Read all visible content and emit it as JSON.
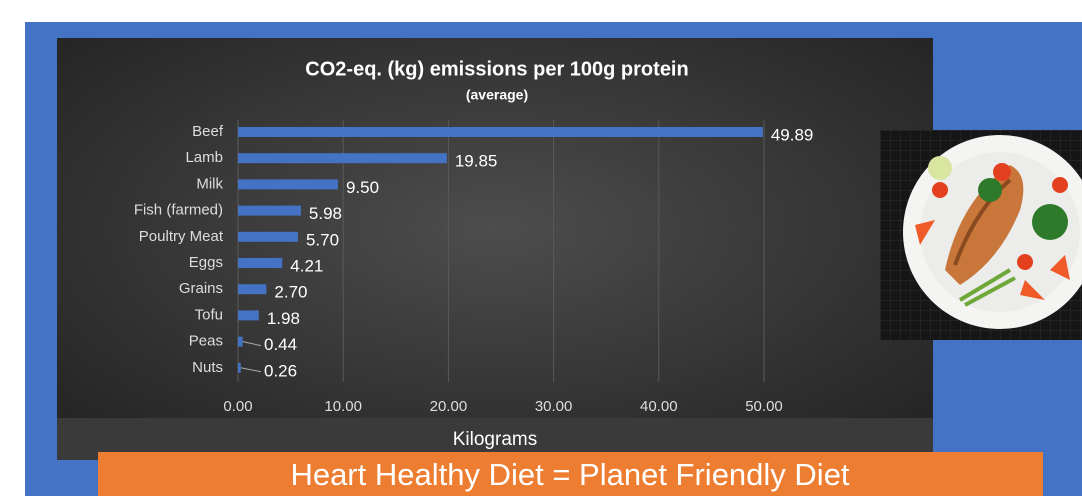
{
  "chart_data": {
    "type": "bar",
    "orientation": "horizontal",
    "title": "CO2-eq. (kg) emissions per 100g protein",
    "subtitle": "(average)",
    "x_label": "Kilograms",
    "categories": [
      "Beef",
      "Lamb",
      "Milk",
      "Fish (farmed)",
      "Poultry Meat",
      "Eggs",
      "Grains",
      "Tofu",
      "Peas",
      "Nuts"
    ],
    "values": [
      49.89,
      19.85,
      9.5,
      5.98,
      5.7,
      4.21,
      2.7,
      1.98,
      0.44,
      0.26
    ],
    "value_labels": [
      "49.89",
      "19.85",
      "9.50",
      "5.98",
      "5.70",
      "4.21",
      "2.70",
      "1.98",
      "0.44",
      "0.26"
    ],
    "color": "#4472c4",
    "xlim": [
      0,
      50
    ],
    "xticks": [
      {
        "value": 0,
        "label": "0.00"
      },
      {
        "value": 10,
        "label": "10.00"
      },
      {
        "value": 20,
        "label": "20.00"
      },
      {
        "value": 30,
        "label": "30.00"
      },
      {
        "value": 40,
        "label": "40.00"
      },
      {
        "value": 50,
        "label": "50.00"
      }
    ],
    "grid": true
  },
  "banner": "Heart Healthy Diet = Planet Friendly Diet"
}
